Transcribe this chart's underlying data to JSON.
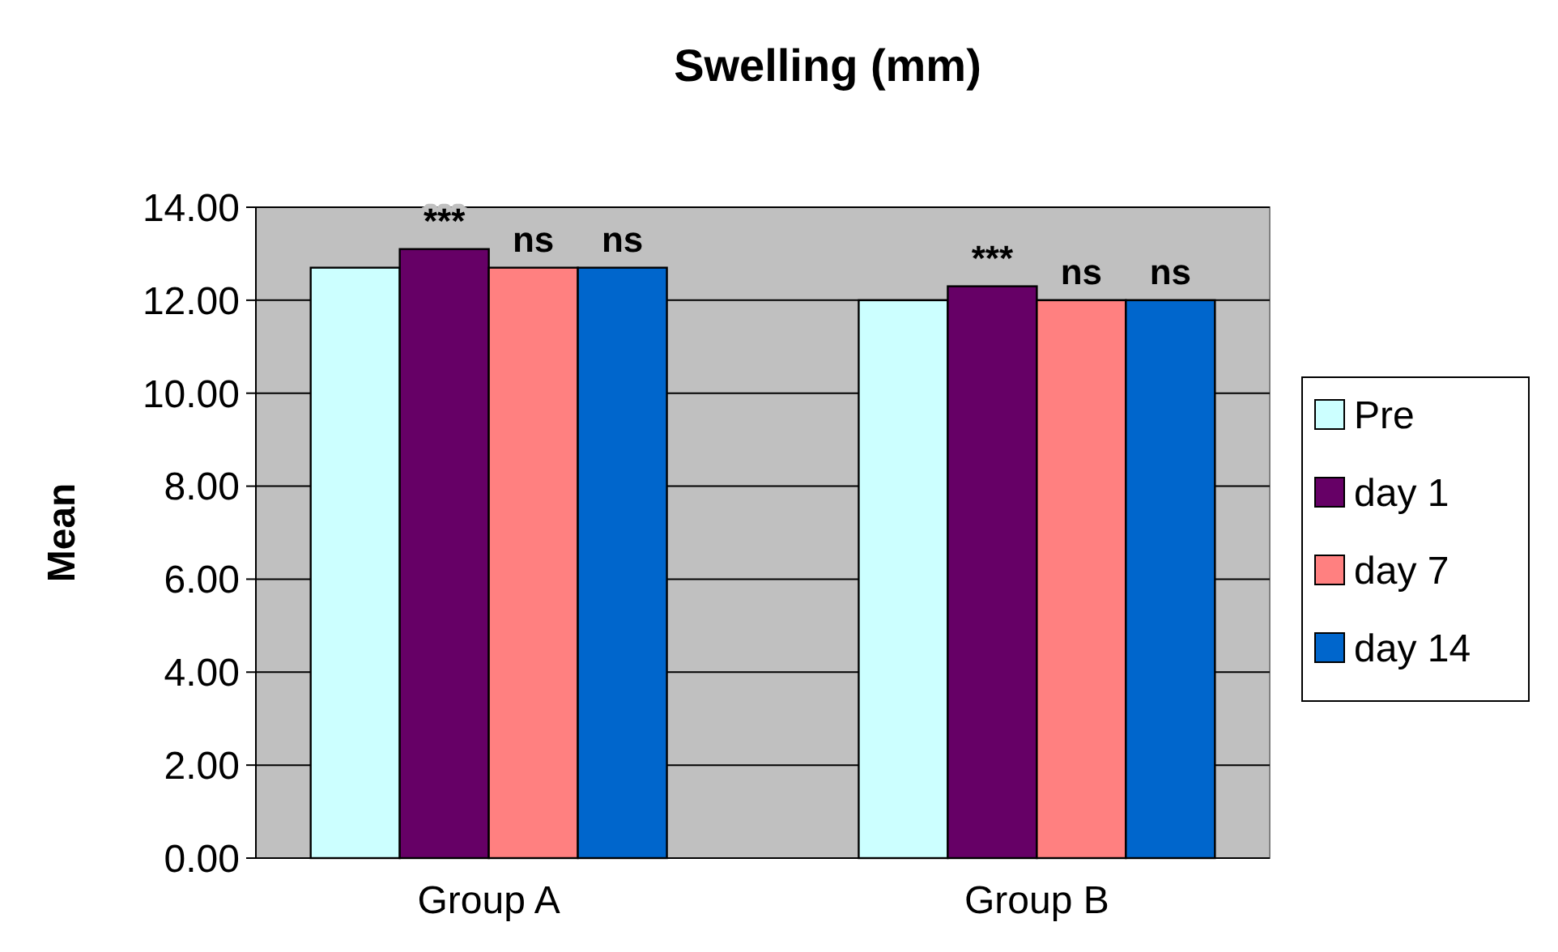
{
  "chart_data": {
    "type": "bar",
    "title": "Swelling (mm)",
    "ylabel": "Mean",
    "categories": [
      "Group A",
      "Group B"
    ],
    "series": [
      {
        "name": "Pre",
        "color": "#ccffff",
        "values": [
          12.7,
          12.0
        ]
      },
      {
        "name": "day 1",
        "color": "#660066",
        "values": [
          13.1,
          12.3
        ]
      },
      {
        "name": "day 7",
        "color": "#ff8080",
        "values": [
          12.7,
          12.0
        ]
      },
      {
        "name": "day 14",
        "color": "#0066cc",
        "values": [
          12.7,
          12.0
        ]
      }
    ],
    "ylim": [
      0,
      14
    ],
    "yticks": [
      {
        "value": 0,
        "label": "0.00"
      },
      {
        "value": 2,
        "label": "2.00"
      },
      {
        "value": 4,
        "label": "4.00"
      },
      {
        "value": 6,
        "label": "6.00"
      },
      {
        "value": 8,
        "label": "8.00"
      },
      {
        "value": 10,
        "label": "10.00"
      },
      {
        "value": 12,
        "label": "12.00"
      },
      {
        "value": 14,
        "label": "14.00"
      }
    ],
    "grid": "y",
    "legend": "right",
    "annotations": [
      "***",
      "ns",
      "ns",
      "***",
      "ns",
      "ns"
    ]
  }
}
